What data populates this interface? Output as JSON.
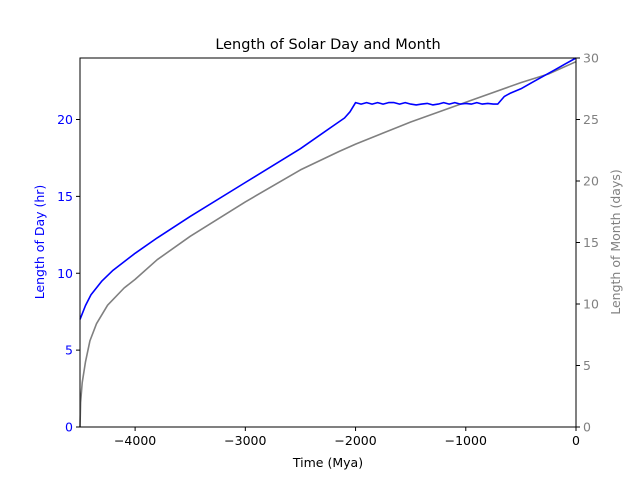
{
  "chart_data": {
    "type": "line",
    "title": "Length of Solar Day and Month",
    "xlabel": "Time (Mya)",
    "xlim": [
      -4500,
      0
    ],
    "xticks": [
      -4000,
      -3000,
      -2000,
      -1000,
      0
    ],
    "xtick_labels": [
      "−4000",
      "−3000",
      "−2000",
      "−1000",
      "0"
    ],
    "axes": [
      {
        "side": "left",
        "ylabel": "Length of Day (hr)",
        "ylim": [
          0,
          24
        ],
        "yticks": [
          0,
          5,
          10,
          15,
          20
        ],
        "color": "#0000ff"
      },
      {
        "side": "right",
        "ylabel": "Length of Month (days)",
        "ylim": [
          0,
          30
        ],
        "yticks": [
          0,
          5,
          10,
          15,
          20,
          25,
          30
        ],
        "color": "#808080"
      }
    ],
    "series": [
      {
        "name": "Length of Day",
        "axis": "left",
        "color": "#0000ff",
        "x": [
          -4500,
          -4450,
          -4400,
          -4300,
          -4200,
          -4000,
          -3800,
          -3500,
          -3000,
          -2500,
          -2200,
          -2100,
          -2050,
          -2000,
          -1950,
          -1900,
          -1850,
          -1800,
          -1750,
          -1700,
          -1650,
          -1600,
          -1550,
          -1500,
          -1450,
          -1400,
          -1350,
          -1300,
          -1250,
          -1200,
          -1150,
          -1100,
          -1050,
          -1000,
          -950,
          -900,
          -850,
          -800,
          -750,
          -710,
          -650,
          -600,
          -500,
          -400,
          -300,
          -200,
          -100,
          0
        ],
        "y": [
          7.0,
          7.9,
          8.6,
          9.5,
          10.2,
          11.3,
          12.3,
          13.7,
          15.9,
          18.1,
          19.6,
          20.1,
          20.5,
          21.1,
          21.0,
          21.1,
          21.0,
          21.1,
          21.0,
          21.1,
          21.1,
          21.0,
          21.1,
          21.0,
          20.95,
          21.0,
          21.05,
          20.95,
          21.0,
          21.1,
          21.0,
          21.1,
          21.0,
          21.05,
          21.0,
          21.1,
          21.0,
          21.05,
          21.0,
          21.0,
          21.5,
          21.7,
          22.0,
          22.4,
          22.8,
          23.2,
          23.6,
          24.0
        ]
      },
      {
        "name": "Length of Month",
        "axis": "right",
        "color": "#808080",
        "x": [
          -4500,
          -4495,
          -4480,
          -4450,
          -4410,
          -4350,
          -4250,
          -4100,
          -4000,
          -3800,
          -3500,
          -3000,
          -2500,
          -2150,
          -2000,
          -1500,
          -1000,
          -500,
          -250,
          0
        ],
        "y": [
          0,
          2.0,
          3.6,
          5.3,
          7.0,
          8.4,
          9.9,
          11.3,
          12.0,
          13.6,
          15.5,
          18.3,
          20.9,
          22.4,
          23.0,
          24.8,
          26.4,
          28.0,
          28.7,
          29.7
        ]
      }
    ]
  }
}
